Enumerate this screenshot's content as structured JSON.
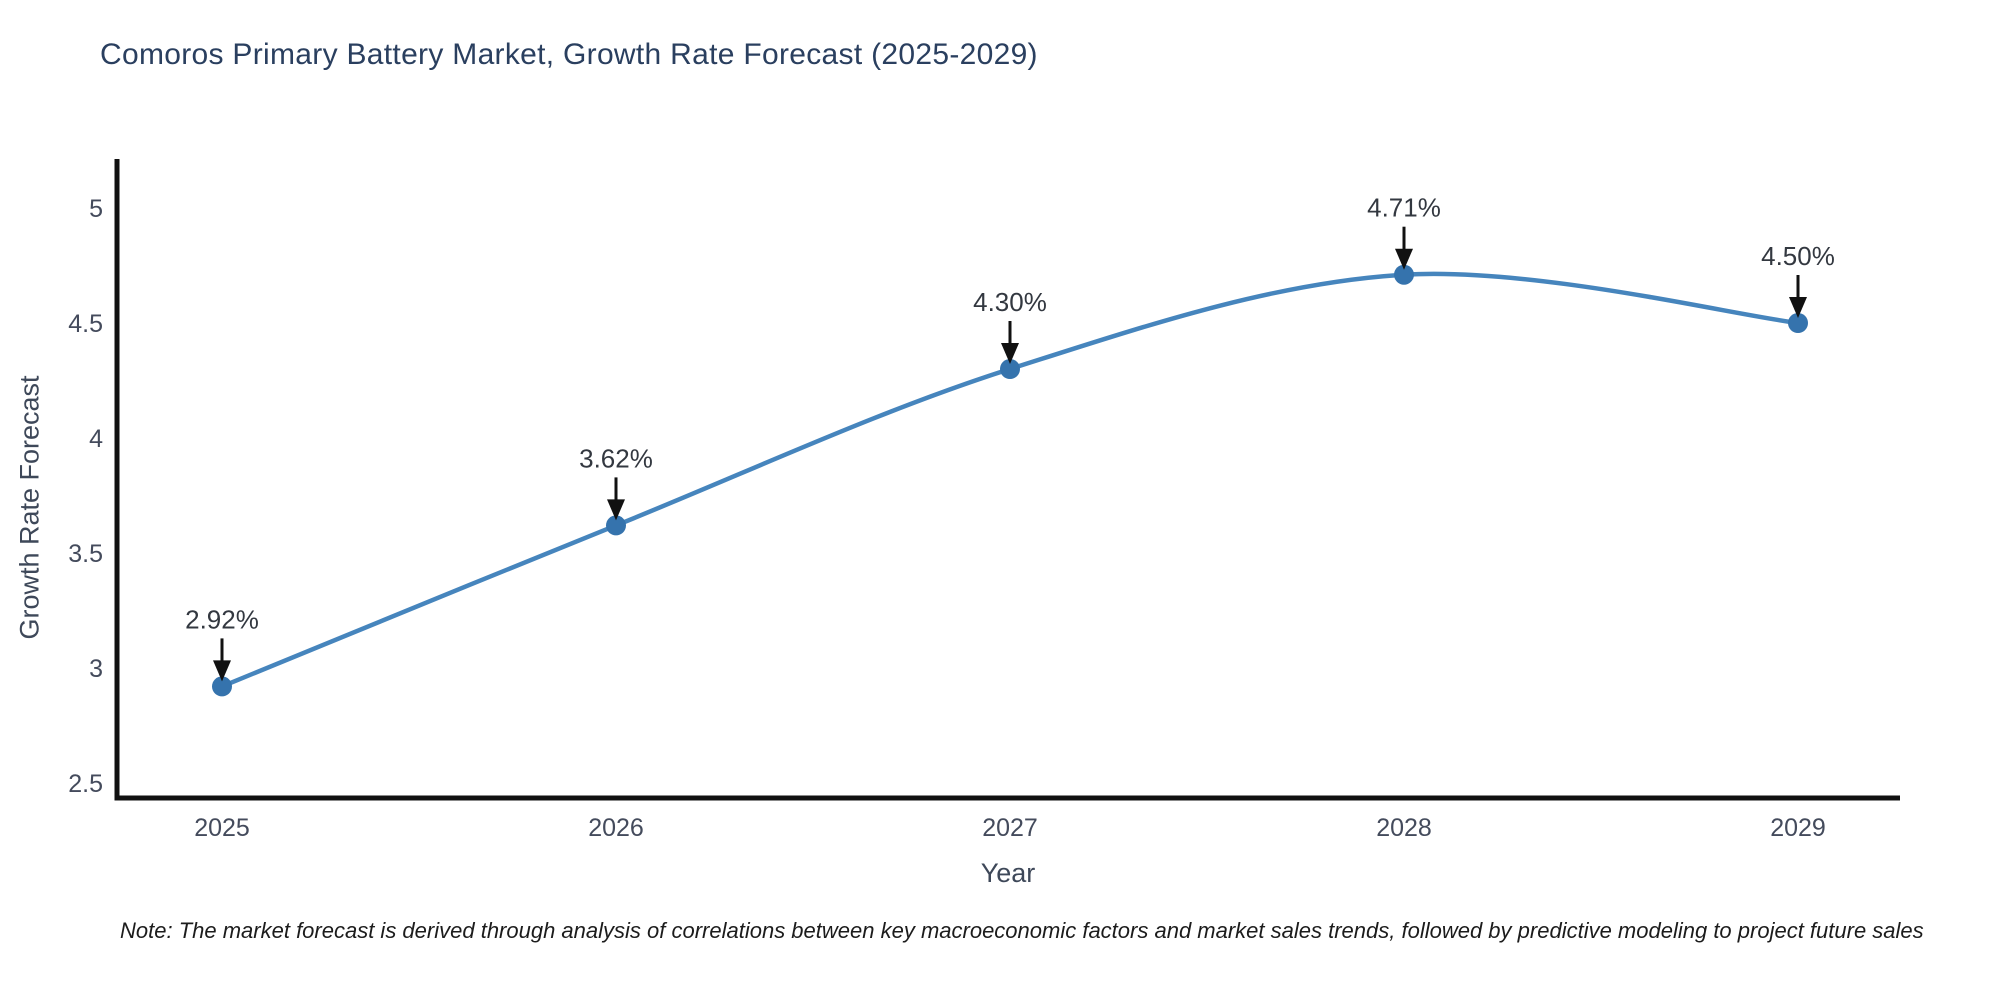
{
  "title": "Comoros Primary Battery Market, Growth Rate Forecast (2025-2029)",
  "note": "Note: The market forecast is derived through analysis of correlations between key macroeconomic factors and market sales trends, followed by predictive modeling to project future sales",
  "chart_data": {
    "type": "line",
    "title": "Comoros Primary Battery Market, Growth Rate Forecast (2025-2029)",
    "xlabel": "Year",
    "ylabel": "Growth Rate Forecast",
    "x": [
      2025,
      2026,
      2027,
      2028,
      2029
    ],
    "series": [
      {
        "name": "Growth Rate Forecast",
        "values": [
          2.92,
          3.62,
          4.3,
          4.71,
          4.5
        ],
        "point_labels": [
          "2.92%",
          "3.62%",
          "4.30%",
          "4.71%",
          "4.50%"
        ]
      }
    ],
    "yticks": [
      "2.5",
      "3",
      "3.5",
      "4",
      "4.5",
      "5"
    ],
    "ylim": [
      2.43,
      5.21
    ],
    "grid": false,
    "legend": "none",
    "colors": {
      "line": "#4685bd",
      "marker": "#3573ad",
      "axis": "#111111",
      "arrow": "#111111",
      "title": "#2a3f5f",
      "tick": "#444b5c",
      "annotation": "#333840"
    }
  }
}
